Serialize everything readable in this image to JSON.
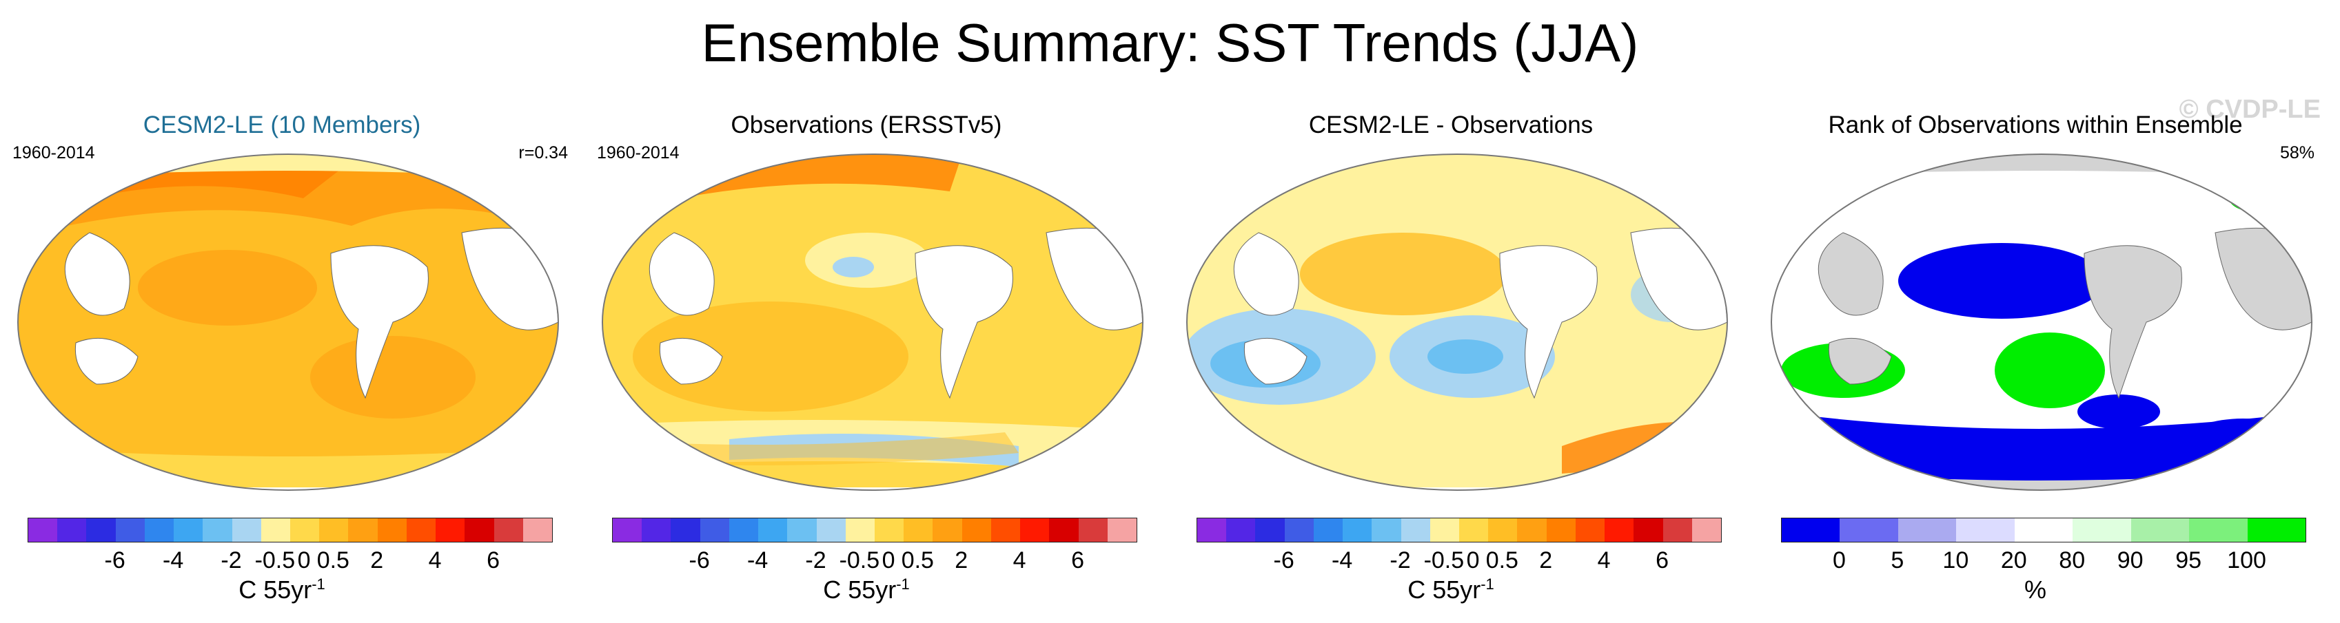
{
  "main_title": "Ensemble Summary: SST Trends (JJA)",
  "watermark": "© CVDP-LE",
  "colors": {
    "temp_scale": [
      "#8a2be2",
      "#5326e6",
      "#2c2ce2",
      "#3f5ce6",
      "#2f86ee",
      "#3da6f2",
      "#6cc0f2",
      "#a9d5f2",
      "#fff29e",
      "#ffd94a",
      "#ffbe25",
      "#ffa012",
      "#ff7f00",
      "#ff4e00",
      "#ff1a00",
      "#d80000",
      "#d93b3b",
      "#f5a3a3"
    ],
    "rank_scale": [
      "#0000ee",
      "#6b6bf2",
      "#aaaaf0",
      "#dcdcff",
      "#ffffff",
      "#dfffdf",
      "#a8f0a8",
      "#7cf07c",
      "#00ee00"
    ],
    "land_temp": "#ffffff",
    "land_rank": "#d3d3d3"
  },
  "panels": [
    {
      "title": "CESM2-LE (10 Members)",
      "left_label": "1960-2014",
      "right_label": "r=0.34",
      "ticks": [
        "-6",
        "-4",
        "-2",
        "-0.5",
        "0",
        "0.5",
        "2",
        "4",
        "6"
      ],
      "units_text": "C 55yr",
      "units_sup": "-1"
    },
    {
      "title": "Observations (ERSSTv5)",
      "left_label": "1960-2014",
      "right_label": "",
      "ticks": [
        "-6",
        "-4",
        "-2",
        "-0.5",
        "0",
        "0.5",
        "2",
        "4",
        "6"
      ],
      "units_text": "C 55yr",
      "units_sup": "-1"
    },
    {
      "title": "CESM2-LE - Observations",
      "left_label": "",
      "right_label": "",
      "ticks": [
        "-6",
        "-4",
        "-2",
        "-0.5",
        "0",
        "0.5",
        "2",
        "4",
        "6"
      ],
      "units_text": "C 55yr",
      "units_sup": "-1"
    },
    {
      "title": "Rank of Observations within Ensemble",
      "left_label": "",
      "right_label": "58%",
      "ticks": [
        "0",
        "5",
        "10",
        "20",
        "80",
        "90",
        "95",
        "100"
      ],
      "units_text": "%",
      "units_sup": ""
    }
  ]
}
